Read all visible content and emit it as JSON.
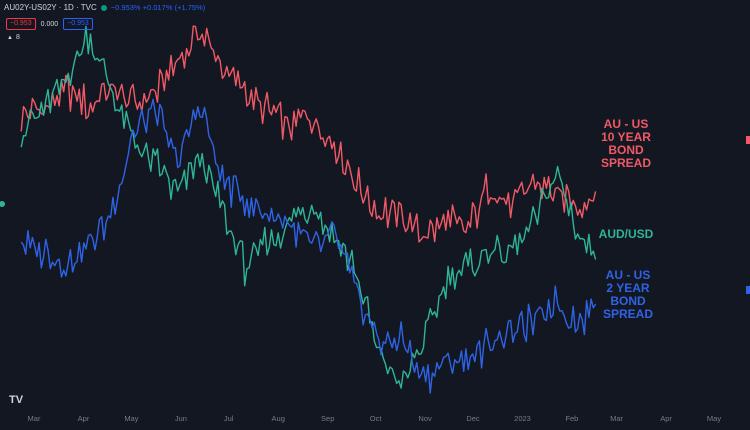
{
  "header": {
    "symbol": "AU02Y-US02Y · 1D · TVC",
    "change": "−0.953% +0.017% (+1.75%)",
    "badge_left": "−0.953",
    "badge_mid": "0.000",
    "badge_right": "−0.953",
    "indicator_count": "8"
  },
  "annotations": {
    "ten_year": [
      "AU - US",
      "10 YEAR",
      "BOND",
      "SPREAD"
    ],
    "audusd": [
      "AUD/USD"
    ],
    "two_year": [
      "AU - US",
      "2 YEAR",
      "BOND",
      "SPREAD"
    ]
  },
  "colors": {
    "background": "#131722",
    "ten_year": "#f05a66",
    "audusd": "#2fb596",
    "two_year": "#2f63e6",
    "axis_text": "#787b86"
  },
  "chart_data": {
    "type": "line",
    "x_tick_labels": [
      "Mar",
      "Apr",
      "May",
      "Jun",
      "Jul",
      "Aug",
      "Sep",
      "Oct",
      "Nov",
      "Dec",
      "2023",
      "Feb",
      "Mar",
      "Apr",
      "May"
    ],
    "y_axis": "hidden (normalized overlay of three series)",
    "grid": false,
    "series": [
      {
        "name": "AU - US 10 YEAR BOND SPREAD",
        "color": "#f05a66",
        "x": [
          "2022-02-21",
          "2022-03-07",
          "2022-03-21",
          "2022-04-04",
          "2022-04-18",
          "2022-05-02",
          "2022-05-16",
          "2022-05-30",
          "2022-06-13",
          "2022-06-27",
          "2022-07-11",
          "2022-07-25",
          "2022-08-08",
          "2022-08-22",
          "2022-09-05",
          "2022-09-19",
          "2022-10-03",
          "2022-10-17",
          "2022-10-31",
          "2022-11-14",
          "2022-11-28",
          "2022-12-12",
          "2022-12-26",
          "2023-01-09",
          "2023-01-23",
          "2023-02-06",
          "2023-02-16"
        ],
        "values": [
          70,
          73,
          79,
          74,
          80,
          75,
          78,
          88,
          100,
          86,
          79,
          72,
          67,
          70,
          62,
          48,
          38,
          38,
          30,
          35,
          32,
          48,
          41,
          49,
          44,
          40,
          45
        ]
      },
      {
        "name": "AUD/USD",
        "color": "#2fb596",
        "x": [
          "2022-02-21",
          "2022-03-07",
          "2022-03-21",
          "2022-04-04",
          "2022-04-18",
          "2022-05-02",
          "2022-05-16",
          "2022-05-30",
          "2022-06-13",
          "2022-06-27",
          "2022-07-11",
          "2022-07-25",
          "2022-08-08",
          "2022-08-22",
          "2022-09-05",
          "2022-09-19",
          "2022-10-03",
          "2022-10-17",
          "2022-10-31",
          "2022-11-14",
          "2022-11-28",
          "2022-12-12",
          "2022-12-26",
          "2023-01-09",
          "2023-01-23",
          "2023-02-06",
          "2023-02-16"
        ],
        "values": [
          65,
          73,
          83,
          97,
          80,
          62,
          55,
          43,
          58,
          38,
          20,
          28,
          33,
          42,
          30,
          18,
          -10,
          -20,
          -6,
          15,
          20,
          25,
          25,
          35,
          52,
          28,
          25
        ]
      },
      {
        "name": "AU - US 2 YEAR BOND SPREAD",
        "color": "#2f63e6",
        "x": [
          "2022-02-21",
          "2022-03-07",
          "2022-03-21",
          "2022-04-04",
          "2022-04-18",
          "2022-05-02",
          "2022-05-16",
          "2022-05-30",
          "2022-06-13",
          "2022-06-27",
          "2022-07-11",
          "2022-07-25",
          "2022-08-08",
          "2022-08-22",
          "2022-09-05",
          "2022-09-19",
          "2022-10-03",
          "2022-10-17",
          "2022-10-31",
          "2022-11-14",
          "2022-11-28",
          "2022-12-12",
          "2022-12-26",
          "2023-01-09",
          "2023-01-23",
          "2023-02-06",
          "2023-02-16"
        ],
        "values": [
          28,
          25,
          20,
          28,
          37,
          65,
          72,
          55,
          75,
          48,
          42,
          38,
          35,
          25,
          30,
          12,
          -6,
          -4,
          -18,
          -12,
          -12,
          -5,
          -2,
          2,
          8,
          0,
          10
        ]
      }
    ]
  }
}
